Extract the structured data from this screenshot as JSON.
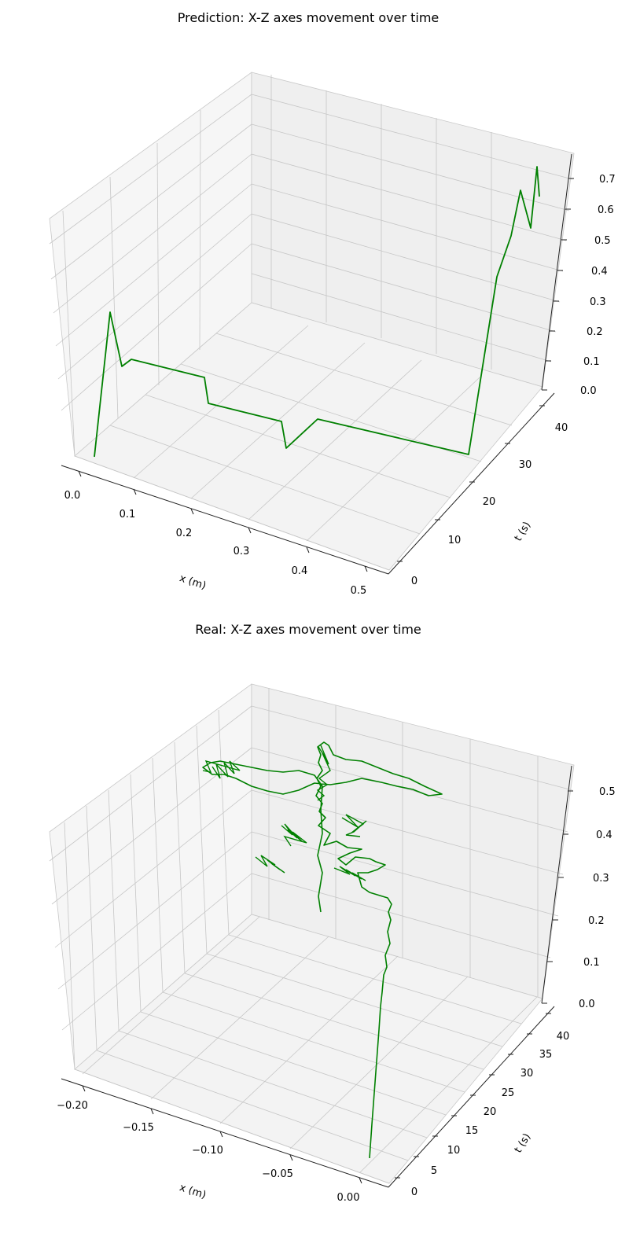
{
  "chart_data": [
    {
      "type": "line3d",
      "title": "Prediction: X-Z axes movement over time",
      "xlabel": "x (m)",
      "ylabel": "t (s)",
      "zlabel": "",
      "xlim": [
        -0.02,
        0.52
      ],
      "ylim": [
        -2,
        44
      ],
      "zlim": [
        0.0,
        0.75
      ],
      "xticks": [
        "0.0",
        "0.1",
        "0.2",
        "0.3",
        "0.4",
        "0.5"
      ],
      "yticks": [
        "0",
        "10",
        "20",
        "30",
        "40"
      ],
      "zticks": [
        "0.0",
        "0.1",
        "0.2",
        "0.3",
        "0.4",
        "0.5",
        "0.6",
        "0.7"
      ],
      "grid": true,
      "series": [
        {
          "color": "#008000",
          "x": [
            0.0,
            0.005,
            0.01,
            0.02,
            0.03,
            0.2,
            0.2,
            0.38,
            0.37,
            0.4,
            0.45,
            0.49,
            0.49,
            0.5,
            0.5,
            0.5,
            0.5,
            0.5,
            0.5,
            0.5,
            0.5,
            0.5,
            0.5,
            0.5,
            0.5
          ],
          "t": [
            0,
            0.5,
            1,
            1.5,
            2,
            2,
            3,
            1,
            0,
            2,
            2,
            2.5,
            3,
            5,
            9,
            12,
            16,
            19,
            23,
            26,
            30,
            33,
            36,
            38,
            40
          ],
          "z": [
            0.0,
            0.28,
            0.27,
            0.2,
            0.2,
            0.2,
            0.1,
            0.1,
            0.05,
            0.1,
            0.05,
            0.05,
            0.05,
            0.2,
            0.4,
            0.42,
            0.5,
            0.5,
            0.56,
            0.58,
            0.6,
            0.62,
            0.58,
            0.7,
            0.65
          ]
        }
      ]
    },
    {
      "type": "line3d",
      "title": "Real: X-Z axes movement over time",
      "xlabel": "x (m)",
      "ylabel": "t (s)",
      "zlabel": "",
      "xlim": [
        -0.21,
        0.01
      ],
      "ylim": [
        -1,
        42
      ],
      "zlim": [
        0.0,
        0.55
      ],
      "xticks": [
        "−0.20",
        "−0.15",
        "−0.10",
        "−0.05",
        "0.00"
      ],
      "yticks": [
        "0",
        "5",
        "10",
        "15",
        "20",
        "25",
        "30",
        "35",
        "40"
      ],
      "zticks": [
        "0.0",
        "0.1",
        "0.2",
        "0.3",
        "0.4",
        "0.5"
      ],
      "grid": true,
      "series": [
        {
          "color": "#008000",
          "x": [
            0.0,
            -0.01,
            -0.015,
            -0.015,
            -0.02,
            -0.03,
            -0.07,
            -0.12,
            -0.18,
            -0.17,
            -0.14,
            -0.11,
            -0.08,
            -0.06,
            -0.03,
            -0.045,
            -0.07,
            -0.1,
            -0.16,
            -0.15,
            -0.12,
            -0.11,
            -0.1,
            -0.1,
            -0.09,
            -0.08,
            -0.065,
            -0.1,
            -0.13,
            -0.17,
            -0.2,
            -0.19,
            -0.15,
            -0.11,
            -0.08,
            -0.05,
            -0.01,
            -0.01,
            -0.03,
            -0.06,
            -0.09,
            -0.1,
            -0.1,
            -0.095,
            -0.1
          ],
          "t": [
            0,
            4,
            8,
            10,
            12,
            14,
            16,
            18,
            20,
            22,
            22,
            22,
            22,
            22,
            22,
            23,
            24,
            25,
            26,
            27,
            28,
            28,
            28,
            29,
            29,
            29,
            29,
            30,
            30,
            30,
            31,
            31,
            31,
            31,
            31,
            32,
            32,
            33,
            33,
            33,
            34,
            34,
            34,
            35,
            35
          ],
          "z": [
            0.0,
            0.1,
            0.18,
            0.22,
            0.27,
            0.3,
            0.31,
            0.31,
            0.31,
            0.3,
            0.29,
            0.29,
            0.3,
            0.31,
            0.32,
            0.35,
            0.37,
            0.37,
            0.36,
            0.35,
            0.34,
            0.3,
            0.25,
            0.25,
            0.27,
            0.3,
            0.35,
            0.4,
            0.42,
            0.43,
            0.42,
            0.45,
            0.45,
            0.44,
            0.43,
            0.42,
            0.42,
            0.45,
            0.47,
            0.48,
            0.49,
            0.5,
            0.45,
            0.35,
            0.25
          ]
        }
      ]
    }
  ]
}
